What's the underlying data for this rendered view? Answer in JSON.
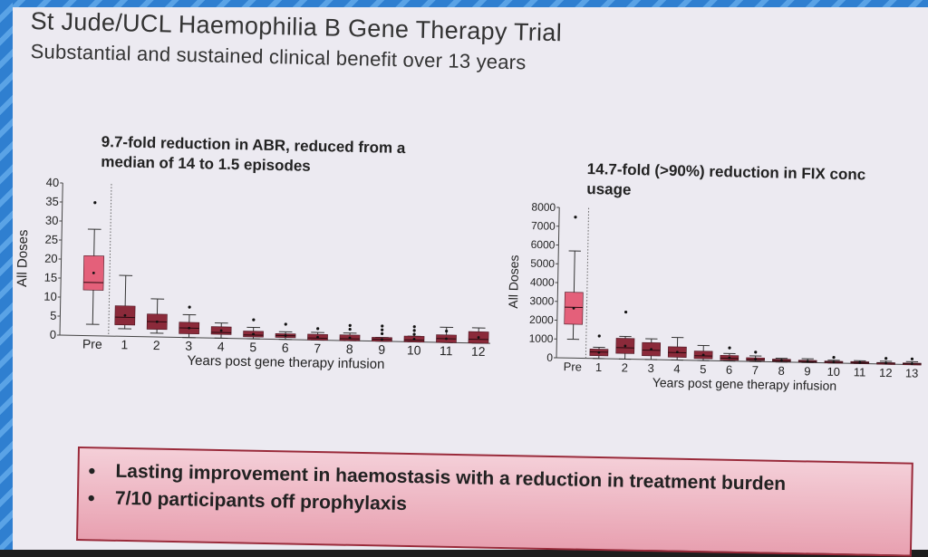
{
  "slide": {
    "title": "St Jude/UCL Haemophilia B Gene Therapy Trial",
    "subtitle": "Substantial and sustained clinical benefit over 13 years"
  },
  "colors": {
    "pre_box": "#e4607a",
    "post_box": "#8b2a3a",
    "callout_fill": "#f0bcc8",
    "callout_border": "#9a2a3a",
    "stripe": "#2f7fd0"
  },
  "bullets": [
    "Lasting improvement in haemostasis with a reduction in treatment burden",
    "7/10 participants off prophylaxis"
  ],
  "chart_data": [
    {
      "type": "box",
      "title": "9.7-fold reduction in ABR, reduced from a median of 14 to 1.5 episodes",
      "title_lines": [
        "9.7-fold reduction in ABR, reduced from a",
        "median of 14 to 1.5 episodes"
      ],
      "xlabel": "Years post gene therapy infusion",
      "ylabel": "All Doses",
      "ylim": [
        0,
        40
      ],
      "yticks": [
        0,
        5,
        10,
        15,
        20,
        25,
        30,
        35,
        40
      ],
      "categories": [
        "Pre",
        "1",
        "2",
        "3",
        "4",
        "5",
        "6",
        "7",
        "8",
        "9",
        "10",
        "11",
        "12"
      ],
      "boxes": [
        {
          "min": 3,
          "q1": 12,
          "median": 14,
          "q3": 21,
          "max": 28,
          "outliers": [
            35
          ]
        },
        {
          "min": 2,
          "q1": 3,
          "median": 5,
          "q3": 8,
          "max": 16,
          "outliers": []
        },
        {
          "min": 1,
          "q1": 2,
          "median": 4,
          "q3": 6,
          "max": 10,
          "outliers": []
        },
        {
          "min": 0,
          "q1": 1,
          "median": 2.5,
          "q3": 4,
          "max": 6,
          "outliers": [
            8
          ]
        },
        {
          "min": 0,
          "q1": 1,
          "median": 1.5,
          "q3": 3,
          "max": 4,
          "outliers": []
        },
        {
          "min": 0,
          "q1": 0.5,
          "median": 1,
          "q3": 2,
          "max": 3,
          "outliers": [
            5
          ]
        },
        {
          "min": 0,
          "q1": 0.5,
          "median": 1,
          "q3": 1.5,
          "max": 2,
          "outliers": [
            4
          ]
        },
        {
          "min": 0,
          "q1": 0,
          "median": 0.5,
          "q3": 1.5,
          "max": 2,
          "outliers": [
            3
          ]
        },
        {
          "min": 0,
          "q1": 0,
          "median": 0.5,
          "q3": 1.5,
          "max": 2,
          "outliers": [
            3,
            4
          ]
        },
        {
          "min": 0,
          "q1": 0,
          "median": 0.5,
          "q3": 1,
          "max": 1,
          "outliers": [
            2,
            3,
            4
          ]
        },
        {
          "min": 0,
          "q1": 0,
          "median": 0.5,
          "q3": 1.5,
          "max": 1.5,
          "outliers": [
            2,
            3,
            4
          ]
        },
        {
          "min": 0,
          "q1": 0,
          "median": 1,
          "q3": 2,
          "max": 4,
          "outliers": [
            3
          ]
        },
        {
          "min": 0,
          "q1": 0,
          "median": 1,
          "q3": 3,
          "max": 4,
          "outliers": []
        }
      ],
      "grid": false
    },
    {
      "type": "box",
      "title": "14.7-fold (>90%) reduction in FIX conc usage",
      "title_lines": [
        "14.7-fold (>90%) reduction in FIX conc",
        "usage"
      ],
      "xlabel": "Years post gene therapy infusion",
      "ylabel": "All Doses",
      "ylim": [
        0,
        8000
      ],
      "yticks": [
        0,
        1000,
        2000,
        3000,
        4000,
        5000,
        6000,
        7000,
        8000
      ],
      "categories": [
        "Pre",
        "1",
        "2",
        "3",
        "4",
        "5",
        "6",
        "7",
        "8",
        "9",
        "10",
        "11",
        "12",
        "13"
      ],
      "boxes": [
        {
          "min": 1000,
          "q1": 1800,
          "median": 2700,
          "q3": 3500,
          "max": 5700,
          "outliers": [
            7500
          ]
        },
        {
          "min": 0,
          "q1": 150,
          "median": 350,
          "q3": 500,
          "max": 600,
          "outliers": [
            1200
          ]
        },
        {
          "min": 0,
          "q1": 300,
          "median": 600,
          "q3": 1100,
          "max": 1200,
          "outliers": [
            2500
          ]
        },
        {
          "min": 0,
          "q1": 200,
          "median": 500,
          "q3": 900,
          "max": 1100,
          "outliers": []
        },
        {
          "min": 0,
          "q1": 150,
          "median": 400,
          "q3": 700,
          "max": 1200,
          "outliers": []
        },
        {
          "min": 0,
          "q1": 100,
          "median": 250,
          "q3": 500,
          "max": 800,
          "outliers": []
        },
        {
          "min": 0,
          "q1": 50,
          "median": 150,
          "q3": 300,
          "max": 400,
          "outliers": [
            700
          ]
        },
        {
          "min": 0,
          "q1": 50,
          "median": 100,
          "q3": 200,
          "max": 300,
          "outliers": [
            500
          ]
        },
        {
          "min": 0,
          "q1": 30,
          "median": 80,
          "q3": 150,
          "max": 200,
          "outliers": []
        },
        {
          "min": 0,
          "q1": 30,
          "median": 60,
          "q3": 120,
          "max": 200,
          "outliers": []
        },
        {
          "min": 0,
          "q1": 20,
          "median": 50,
          "q3": 100,
          "max": 150,
          "outliers": [
            300
          ]
        },
        {
          "min": 0,
          "q1": 20,
          "median": 50,
          "q3": 100,
          "max": 150,
          "outliers": []
        },
        {
          "min": 0,
          "q1": 20,
          "median": 50,
          "q3": 80,
          "max": 150,
          "outliers": [
            300
          ]
        },
        {
          "min": 0,
          "q1": 20,
          "median": 40,
          "q3": 80,
          "max": 150,
          "outliers": [
            300
          ]
        }
      ],
      "grid": false
    }
  ]
}
